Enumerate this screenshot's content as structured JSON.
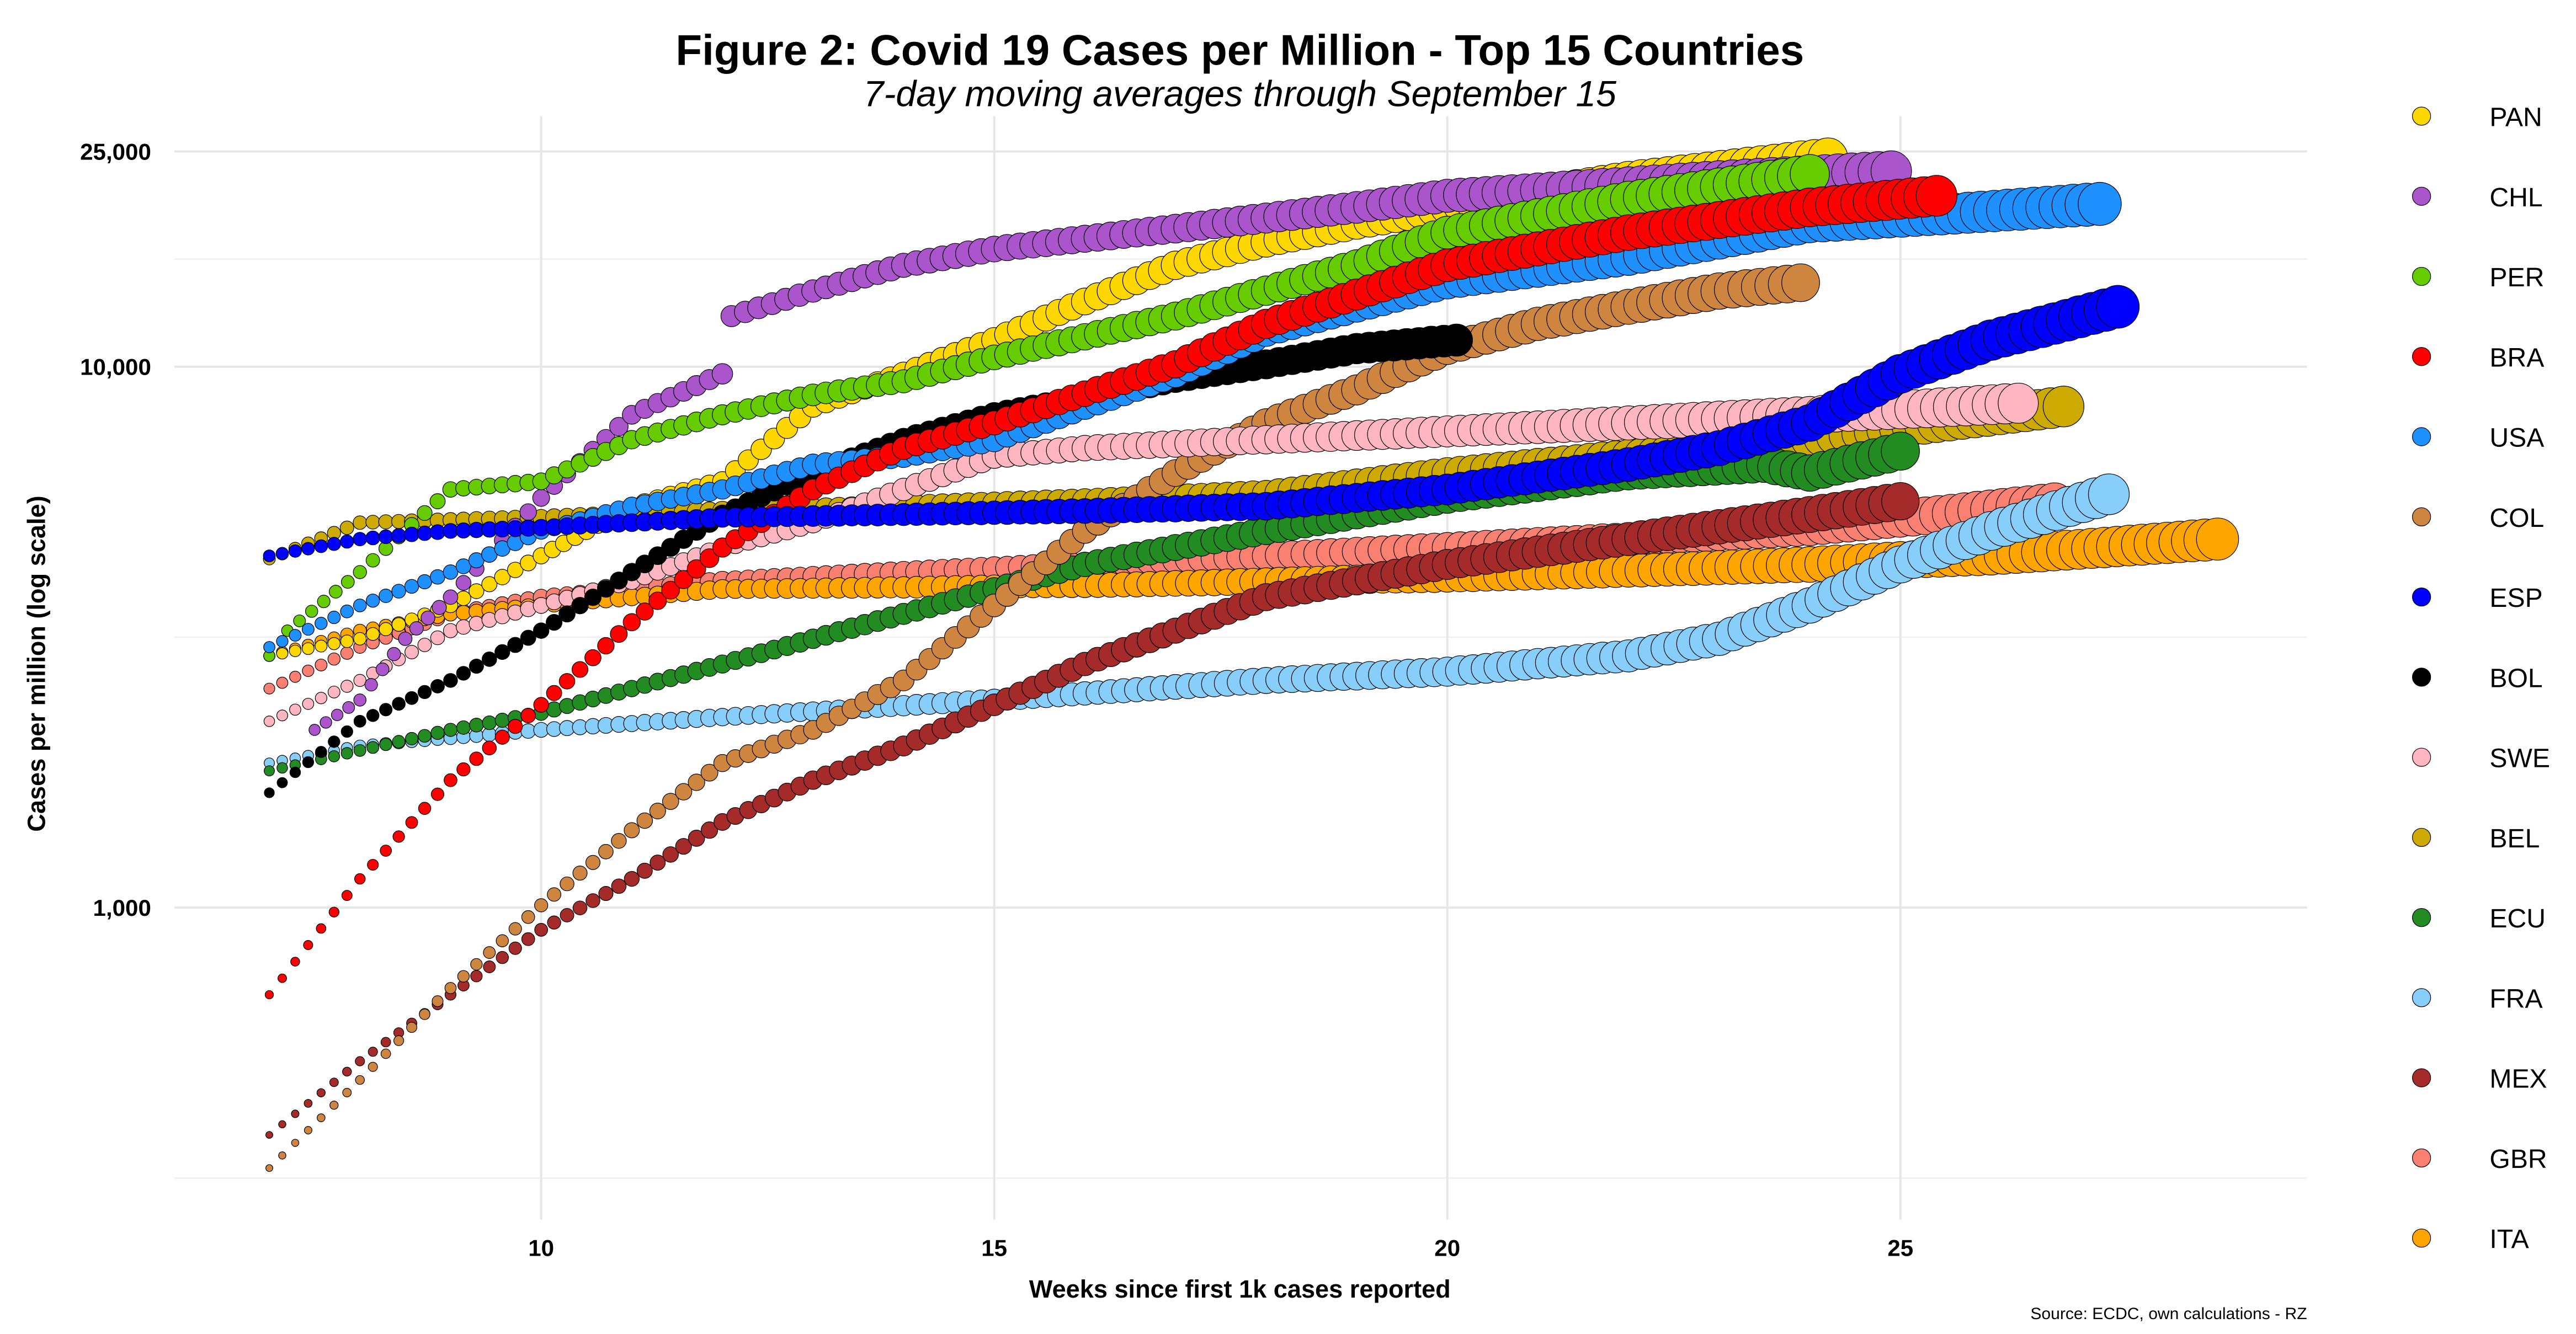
{
  "chart_data": {
    "type": "scatter",
    "title": "Figure 2: Covid 19 Cases per Million - Top 15 Countries",
    "subtitle": "7-day moving averages through September 15",
    "xlabel": "Weeks since first 1k cases reported",
    "ylabel": "Cases per million (log scale)",
    "caption": "Source: ECDC, own calculations - RZ",
    "yscale": "log",
    "xlim": [
      5.9,
      29.4
    ],
    "ylim": [
      220,
      31000
    ],
    "grid": true,
    "legend_position": "right",
    "x_ticks": [
      {
        "value": 10,
        "label": "10"
      },
      {
        "value": 15,
        "label": "15"
      },
      {
        "value": 20,
        "label": "20"
      },
      {
        "value": 25,
        "label": "25"
      }
    ],
    "y_ticks": [
      {
        "value": 25000,
        "label": "25,000"
      },
      {
        "value": 10000,
        "label": "10,000"
      },
      {
        "value": 1000,
        "label": "1,000"
      }
    ],
    "legend": [
      "PAN",
      "CHL",
      "PER",
      "BRA",
      "USA",
      "COL",
      "ESP",
      "BOL",
      "SWE",
      "BEL",
      "ECU",
      "FRA",
      "MEX",
      "GBR",
      "ITA"
    ],
    "series": [
      {
        "name": "PAN",
        "color": "#FFD700",
        "points": [
          [
            7,
            2920
          ],
          [
            8,
            3140
          ],
          [
            9,
            3620
          ],
          [
            10,
            4470
          ],
          [
            10.5,
            4970
          ],
          [
            11,
            5520
          ],
          [
            12,
            6140
          ],
          [
            13,
            8440
          ],
          [
            14,
            9700
          ],
          [
            15,
            11200
          ],
          [
            16,
            13200
          ],
          [
            17,
            15400
          ],
          [
            18,
            17000
          ],
          [
            19,
            18400
          ],
          [
            20,
            19700
          ],
          [
            22,
            22200
          ],
          [
            24.2,
            24350
          ]
        ]
      },
      {
        "name": "CHL",
        "color": "#AA55CC",
        "points": [
          [
            7.5,
            2130
          ],
          [
            8,
            2420
          ],
          [
            8.5,
            3140
          ],
          [
            9,
            3750
          ],
          [
            10,
            5720
          ],
          [
            11,
            8150
          ],
          [
            12,
            9700
          ],
          [
            12.1,
            12400
          ],
          [
            13,
            13800
          ],
          [
            14,
            15400
          ],
          [
            15,
            16500
          ],
          [
            17,
            18000
          ],
          [
            19,
            19700
          ],
          [
            20,
            20700
          ],
          [
            23,
            22200
          ],
          [
            24.9,
            23000
          ]
        ]
      },
      {
        "name": "PER",
        "color": "#66CC00",
        "points": [
          [
            7,
            2920
          ],
          [
            7.2,
            3250
          ],
          [
            8,
            4170
          ],
          [
            9,
            5930
          ],
          [
            10,
            6140
          ],
          [
            11,
            7330
          ],
          [
            12,
            8150
          ],
          [
            13,
            8870
          ],
          [
            14,
            9400
          ],
          [
            15,
            10400
          ],
          [
            17,
            12400
          ],
          [
            19,
            15400
          ],
          [
            20,
            17700
          ],
          [
            22,
            20400
          ],
          [
            24,
            22700
          ]
        ]
      },
      {
        "name": "BRA",
        "color": "#FF0000",
        "points": [
          [
            7,
            690
          ],
          [
            8,
            1130
          ],
          [
            9,
            1720
          ],
          [
            10,
            2370
          ],
          [
            11,
            3370
          ],
          [
            12,
            4630
          ],
          [
            13,
            5930
          ],
          [
            14,
            7070
          ],
          [
            15,
            7870
          ],
          [
            17,
            10100
          ],
          [
            18,
            12000
          ],
          [
            20,
            15400
          ],
          [
            22,
            17700
          ],
          [
            24,
            19700
          ],
          [
            25.4,
            20700
          ]
        ]
      },
      {
        "name": "USA",
        "color": "#1E90FF",
        "points": [
          [
            7,
            3030
          ],
          [
            8,
            3620
          ],
          [
            9,
            4170
          ],
          [
            10,
            4970
          ],
          [
            11,
            5520
          ],
          [
            12,
            5930
          ],
          [
            13,
            6590
          ],
          [
            14,
            6830
          ],
          [
            15,
            7330
          ],
          [
            16,
            8440
          ],
          [
            17,
            9700
          ],
          [
            18,
            11600
          ],
          [
            19,
            12900
          ],
          [
            20,
            14300
          ],
          [
            22,
            15900
          ],
          [
            24,
            18400
          ],
          [
            27.2,
            20000
          ]
        ]
      },
      {
        "name": "COL",
        "color": "#CD853F",
        "points": [
          [
            7,
            330
          ],
          [
            8,
            480
          ],
          [
            9,
            710
          ],
          [
            10,
            1010
          ],
          [
            11,
            1390
          ],
          [
            12,
            1850
          ],
          [
            13,
            2130
          ],
          [
            14,
            2630
          ],
          [
            15,
            3620
          ],
          [
            16,
            4970
          ],
          [
            17,
            6360
          ],
          [
            18,
            7870
          ],
          [
            19,
            9060
          ],
          [
            20,
            10800
          ],
          [
            21,
            12000
          ],
          [
            22,
            12900
          ],
          [
            23,
            13800
          ],
          [
            23.9,
            14300
          ]
        ]
      },
      {
        "name": "ESP",
        "color": "#0000FF",
        "points": [
          [
            7,
            4470
          ],
          [
            8,
            4800
          ],
          [
            9,
            4970
          ],
          [
            10,
            5040
          ],
          [
            12,
            5260
          ],
          [
            14,
            5330
          ],
          [
            16,
            5410
          ],
          [
            18,
            5520
          ],
          [
            20,
            5930
          ],
          [
            22,
            6590
          ],
          [
            23,
            7070
          ],
          [
            24,
            7870
          ],
          [
            25,
            9700
          ],
          [
            26,
            11200
          ],
          [
            27.4,
            12900
          ]
        ]
      },
      {
        "name": "BOL",
        "color": "#000000",
        "points": [
          [
            7,
            1630
          ],
          [
            8,
            2210
          ],
          [
            9,
            2630
          ],
          [
            10,
            3250
          ],
          [
            11,
            4170
          ],
          [
            12,
            5330
          ],
          [
            13,
            6360
          ],
          [
            14,
            7330
          ],
          [
            15,
            8150
          ],
          [
            16,
            8740
          ],
          [
            17,
            9500
          ],
          [
            18,
            10100
          ],
          [
            19,
            10800
          ],
          [
            20.1,
            11200
          ]
        ]
      },
      {
        "name": "SWE",
        "color": "#FFB6C1",
        "points": [
          [
            7,
            2210
          ],
          [
            8,
            2630
          ],
          [
            9,
            3250
          ],
          [
            10,
            3620
          ],
          [
            11,
            4020
          ],
          [
            12,
            4630
          ],
          [
            13,
            5150
          ],
          [
            14,
            5930
          ],
          [
            15,
            6830
          ],
          [
            16,
            7070
          ],
          [
            18,
            7330
          ],
          [
            20,
            7590
          ],
          [
            22,
            7870
          ],
          [
            24,
            8150
          ],
          [
            26.3,
            8560
          ]
        ]
      },
      {
        "name": "BEL",
        "color": "#CCAA00",
        "points": [
          [
            7,
            4410
          ],
          [
            8,
            5150
          ],
          [
            10,
            5260
          ],
          [
            12,
            5410
          ],
          [
            14,
            5520
          ],
          [
            16,
            5640
          ],
          [
            18,
            5810
          ],
          [
            20,
            6360
          ],
          [
            22,
            6830
          ],
          [
            24,
            7330
          ],
          [
            26.8,
            8440
          ]
        ]
      },
      {
        "name": "ECU",
        "color": "#228B22",
        "points": [
          [
            7,
            1790
          ],
          [
            9,
            2130
          ],
          [
            10,
            2290
          ],
          [
            11,
            2540
          ],
          [
            12,
            2820
          ],
          [
            13,
            3140
          ],
          [
            14,
            3490
          ],
          [
            15,
            3880
          ],
          [
            16,
            4310
          ],
          [
            17,
            4630
          ],
          [
            18,
            4970
          ],
          [
            20,
            5720
          ],
          [
            22,
            6360
          ],
          [
            23.5,
            6590
          ],
          [
            24,
            6360
          ],
          [
            25,
            6980
          ]
        ]
      },
      {
        "name": "FRA",
        "color": "#87CEFA",
        "points": [
          [
            7,
            1850
          ],
          [
            8,
            1990
          ],
          [
            10,
            2130
          ],
          [
            12,
            2250
          ],
          [
            15,
            2420
          ],
          [
            18,
            2630
          ],
          [
            20,
            2730
          ],
          [
            22,
            2920
          ],
          [
            23,
            3140
          ],
          [
            24,
            3620
          ],
          [
            25,
            4310
          ],
          [
            26,
            4970
          ],
          [
            27.3,
            5810
          ]
        ]
      },
      {
        "name": "MEX",
        "color": "#A52A2A",
        "points": [
          [
            7,
            380
          ],
          [
            8,
            520
          ],
          [
            9,
            690
          ],
          [
            10,
            910
          ],
          [
            11,
            1130
          ],
          [
            12,
            1440
          ],
          [
            13,
            1720
          ],
          [
            14,
            1990
          ],
          [
            15,
            2370
          ],
          [
            16,
            2820
          ],
          [
            17,
            3250
          ],
          [
            18,
            3750
          ],
          [
            19,
            4020
          ],
          [
            20,
            4310
          ],
          [
            22,
            4800
          ],
          [
            24,
            5330
          ],
          [
            25,
            5640
          ]
        ]
      },
      {
        "name": "GBR",
        "color": "#FA8072",
        "points": [
          [
            7,
            2540
          ],
          [
            8,
            3030
          ],
          [
            9,
            3490
          ],
          [
            10,
            3750
          ],
          [
            11,
            3880
          ],
          [
            12,
            4020
          ],
          [
            14,
            4170
          ],
          [
            16,
            4310
          ],
          [
            18,
            4470
          ],
          [
            20,
            4630
          ],
          [
            22,
            4800
          ],
          [
            24,
            5040
          ],
          [
            26.7,
            5600
          ]
        ]
      },
      {
        "name": "ITA",
        "color": "#FFA500",
        "points": [
          [
            7,
            2920
          ],
          [
            8,
            3250
          ],
          [
            9,
            3490
          ],
          [
            10,
            3620
          ],
          [
            11,
            3750
          ],
          [
            12,
            3880
          ],
          [
            16,
            3940
          ],
          [
            20,
            4080
          ],
          [
            24,
            4310
          ],
          [
            26,
            4470
          ],
          [
            28.5,
            4800
          ]
        ]
      }
    ]
  }
}
